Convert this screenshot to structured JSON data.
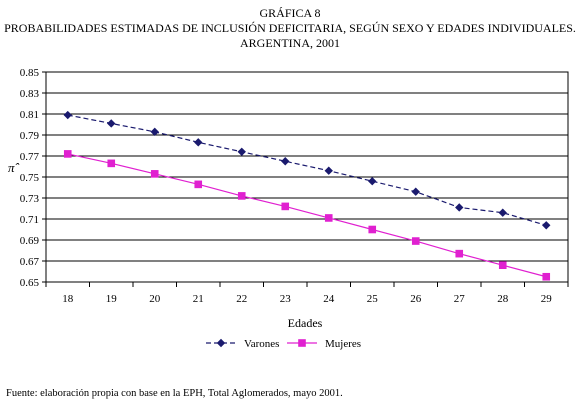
{
  "header": {
    "label": "GRÁFICA 8",
    "title_line1": "PROBABILIDADES ESTIMADAS DE INCLUSIÓN DEFICITARIA, SEGÚN SEXO Y EDADES INDIVIDUALES.",
    "title_line2": "ARGENTINA, 2001"
  },
  "source_note": "Fuente: elaboración propia con base en la EPH, Total Aglomerados, mayo 2001.",
  "chart_data": {
    "type": "line",
    "title": "PROBABILIDADES ESTIMADAS DE INCLUSIÓN DEFICITARIA, SEGÚN SEXO Y EDADES INDIVIDUALES. ARGENTINA, 2001",
    "xlabel": "Edades",
    "ylabel": "π̂",
    "x": [
      18,
      19,
      20,
      21,
      22,
      23,
      24,
      25,
      26,
      27,
      28,
      29
    ],
    "ylim": [
      0.65,
      0.85
    ],
    "yticks": [
      "0.65",
      "0.67",
      "0.69",
      "0.71",
      "0.73",
      "0.75",
      "0.77",
      "0.79",
      "0.81",
      "0.83",
      "0.85"
    ],
    "grid": true,
    "legend": "bottom-center",
    "series": [
      {
        "name": "Varones",
        "color": "#1a1a6e",
        "marker": "diamond",
        "line_style": "dashed",
        "values": [
          0.809,
          0.801,
          0.793,
          0.783,
          0.774,
          0.765,
          0.756,
          0.746,
          0.736,
          0.721,
          0.716,
          0.704
        ]
      },
      {
        "name": "Mujeres",
        "color": "#e020d0",
        "marker": "square",
        "line_style": "solid",
        "values": [
          0.772,
          0.763,
          0.753,
          0.743,
          0.732,
          0.722,
          0.711,
          0.7,
          0.689,
          0.677,
          0.666,
          0.655
        ]
      }
    ]
  }
}
